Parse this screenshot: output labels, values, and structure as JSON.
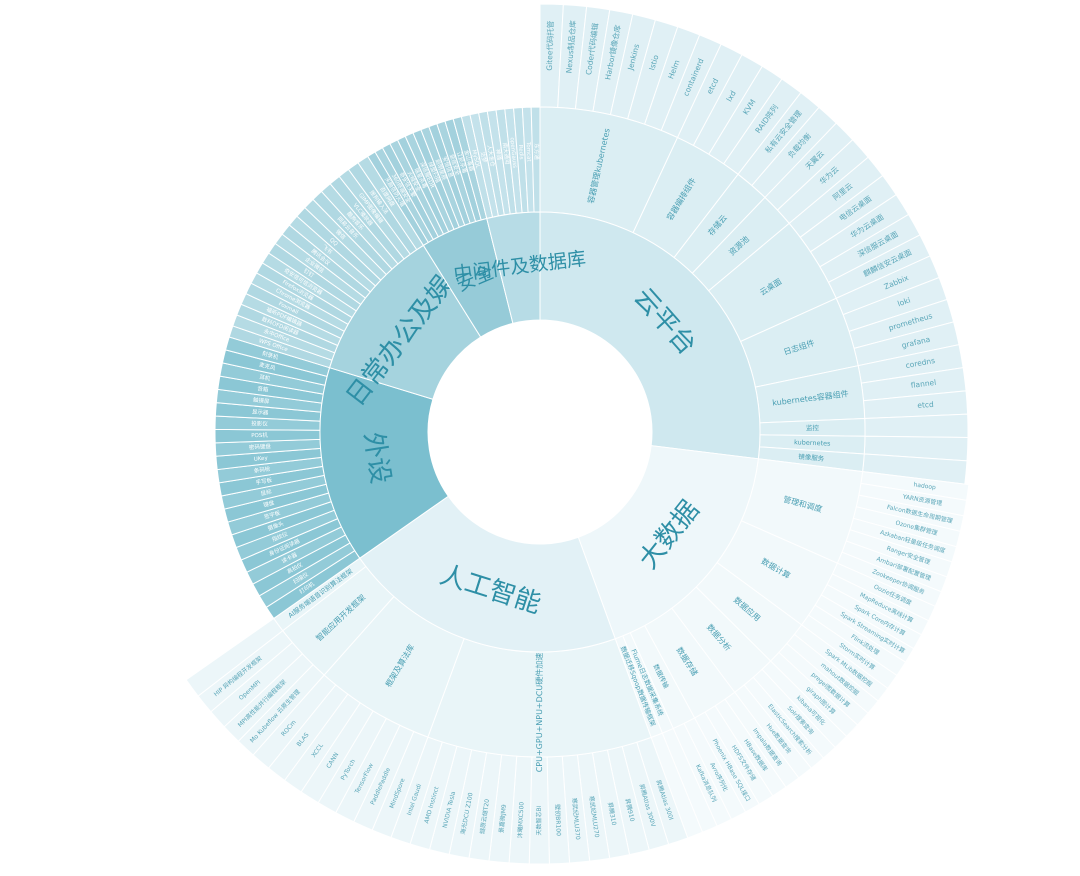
{
  "chart_data": {
    "type": "sunburst",
    "title": "",
    "colors": {
      "云平台": "#cfe8ef",
      "大数据": "#eef7fa",
      "人工智能": "#e2f1f6",
      "外设": "#7bbfcf",
      "日常办公及娱乐": "#a5d3de",
      "安全": "#96cbd8",
      "中间件及数据库": "#b7dce6"
    },
    "tree": [
      {
        "name": "云平台",
        "children": [
          {
            "name": "容器管理kubernetes",
            "children": [
              {
                "name": "Gitee代码托管"
              },
              {
                "name": "Nexus制品仓库"
              },
              {
                "name": "Coder代码编辑"
              },
              {
                "name": "Harbor镜像仓库"
              },
              {
                "name": "Jenkins"
              },
              {
                "name": "Istio"
              },
              {
                "name": "Helm"
              },
              {
                "name": "containerd"
              }
            ]
          },
          {
            "name": "容器编排组件",
            "children": [
              {
                "name": "etcd"
              },
              {
                "name": "lxd"
              },
              {
                "name": "KVM"
              },
              {
                "name": "RAID阵列"
              }
            ]
          },
          {
            "name": "存储云",
            "children": [
              {
                "name": "私有云安全管理"
              },
              {
                "name": "负载均衡"
              }
            ]
          },
          {
            "name": "资源池",
            "children": [
              {
                "name": "天翼云"
              },
              {
                "name": "华为云"
              }
            ]
          },
          {
            "name": "云桌面",
            "children": [
              {
                "name": "阿里云"
              },
              {
                "name": "电信云桌面"
              },
              {
                "name": "华为云桌面"
              },
              {
                "name": "深信服云桌面"
              },
              {
                "name": "麒麟信安云桌面"
              }
            ]
          },
          {
            "name": "日志组件",
            "children": [
              {
                "name": "Zabbix"
              },
              {
                "name": "loki"
              },
              {
                "name": "prometheus"
              },
              {
                "name": "grafana"
              }
            ]
          },
          {
            "name": "kubernetes容器组件",
            "children": [
              {
                "name": "coredns"
              },
              {
                "name": "flannel"
              },
              {
                "name": "etcd"
              }
            ]
          },
          {
            "name": "监控",
            "children": []
          },
          {
            "name": "kubernetes",
            "children": []
          },
          {
            "name": "镜像服务",
            "children": []
          }
        ]
      },
      {
        "name": "大数据",
        "children": [
          {
            "name": "管理和调度",
            "children": [
              {
                "name": "hadoop"
              },
              {
                "name": "YARN资源管理"
              },
              {
                "name": "Falcon数据生命周期管理"
              },
              {
                "name": "Ozone集群管理"
              },
              {
                "name": "Azkaban轻量级任务调度"
              },
              {
                "name": "Ranger安全管理"
              },
              {
                "name": "Ambari部署配置管理"
              },
              {
                "name": "Zookeeper协调服务"
              }
            ]
          },
          {
            "name": "数据计算",
            "children": [
              {
                "name": "Oozie任务调度"
              },
              {
                "name": "MapReduce离线计算"
              },
              {
                "name": "Spark Core内存计算"
              },
              {
                "name": "Spark Streaming实时计算"
              },
              {
                "name": "Flink流处理"
              },
              {
                "name": "Storm实时计算"
              }
            ]
          },
          {
            "name": "数据应用",
            "children": [
              {
                "name": "Spark MLib数据挖掘"
              },
              {
                "name": "mahout数据挖掘"
              },
              {
                "name": "pregel图数据计算"
              },
              {
                "name": "giraph图计算"
              }
            ]
          },
          {
            "name": "数据分析",
            "children": [
              {
                "name": "kibana可视化"
              },
              {
                "name": "Solr搜索查询"
              },
              {
                "name": "ElasticSearch搜索分析"
              },
              {
                "name": "Hue数据查询"
              }
            ]
          },
          {
            "name": "数据存储",
            "children": [
              {
                "name": "Impala数据查询"
              },
              {
                "name": "HBase数据库"
              },
              {
                "name": "HDFS文件存储"
              },
              {
                "name": "Phoenix HBase SQL接口"
              }
            ]
          },
          {
            "name": "数据传输",
            "children": [
              {
                "name": "Avro序列化"
              },
              {
                "name": "Kafka消息队列"
              }
            ]
          },
          {
            "name": "Flume日志数据采集系统",
            "children": []
          },
          {
            "name": "数据迁移Sqoop数据传输框架",
            "children": []
          }
        ]
      },
      {
        "name": "人工智能",
        "children": [
          {
            "name": "CPU+GPU+NPU+DCU硬件加速平台",
            "children": [
              {
                "name": "昇腾Atlas 300I"
              },
              {
                "name": "昇腾Atlas 300V"
              },
              {
                "name": "昇腾910"
              },
              {
                "name": "昇腾310"
              },
              {
                "name": "寒武纪MLU270"
              },
              {
                "name": "寒武纪MLU370"
              },
              {
                "name": "壁仞BR100"
              },
              {
                "name": "天数智芯BI"
              },
              {
                "name": "沐曦MXC500"
              },
              {
                "name": "景嘉微JM9"
              },
              {
                "name": "燧原云燧T20"
              },
              {
                "name": "海光DCU Z100"
              },
              {
                "name": "NVIDIA Tesla"
              },
              {
                "name": "AMD Instinct"
              },
              {
                "name": "Intel Gaudi"
              }
            ]
          },
          {
            "name": "框架及算法库",
            "children": [
              {
                "name": "MindSpore"
              },
              {
                "name": "PaddlePaddle"
              },
              {
                "name": "TensorFlow"
              },
              {
                "name": "PyTorch"
              },
              {
                "name": "CANN"
              },
              {
                "name": "XCCL"
              },
              {
                "name": "BLAS"
              },
              {
                "name": "ROCm"
              }
            ]
          },
          {
            "name": "智能应用开发框架",
            "children": [
              {
                "name": "Mo Kubeflow 云原生管理"
              },
              {
                "name": "MPI高性能并行编程框架"
              },
              {
                "name": "OpenMPI"
              },
              {
                "name": "HIP 异构编程开发框架"
              }
            ]
          },
          {
            "name": "AI服务端语音识别算法框架",
            "children": []
          }
        ]
      },
      {
        "name": "外设",
        "children": [
          {
            "name": "打印机"
          },
          {
            "name": "扫描仪"
          },
          {
            "name": "高拍仪"
          },
          {
            "name": "读卡器"
          },
          {
            "name": "身份证阅读器"
          },
          {
            "name": "指纹仪"
          },
          {
            "name": "摄像头"
          },
          {
            "name": "签字板"
          },
          {
            "name": "键盘"
          },
          {
            "name": "鼠标"
          },
          {
            "name": "手写板"
          },
          {
            "name": "条码枪"
          },
          {
            "name": "UKey"
          },
          {
            "name": "密码键盘"
          },
          {
            "name": "POS机"
          },
          {
            "name": "投影仪"
          },
          {
            "name": "显示器"
          },
          {
            "name": "触摸屏"
          },
          {
            "name": "音箱"
          },
          {
            "name": "耳机"
          },
          {
            "name": "麦克风"
          },
          {
            "name": "刻录机"
          }
        ]
      },
      {
        "name": "日常办公及娱乐",
        "children": [
          {
            "name": "WPS Office"
          },
          {
            "name": "永中Office"
          },
          {
            "name": "数科OFD阅读器"
          },
          {
            "name": "福昕PDF编辑器"
          },
          {
            "name": "Foxmail"
          },
          {
            "name": "Chrome浏览器"
          },
          {
            "name": "Firefox浏览器"
          },
          {
            "name": "奇安信可信浏览器"
          },
          {
            "name": "钉钉"
          },
          {
            "name": "企业微信"
          },
          {
            "name": "腾讯会议"
          },
          {
            "name": "飞书"
          },
          {
            "name": "QQ"
          },
          {
            "name": "微信"
          },
          {
            "name": "网易云音乐"
          },
          {
            "name": "酷狗音乐"
          },
          {
            "name": "VLC播放器"
          },
          {
            "name": "GIMP图像编辑"
          },
          {
            "name": "搜狗输入法"
          },
          {
            "name": "百度网盘"
          }
        ]
      },
      {
        "name": "安全",
        "children": [
          {
            "name": "天融信防火墙"
          },
          {
            "name": "360终端安全"
          },
          {
            "name": "奇安信天擎"
          },
          {
            "name": "火绒安全"
          },
          {
            "name": "瑞星杀毒"
          },
          {
            "name": "深信服EDR"
          },
          {
            "name": "绿盟扫描"
          },
          {
            "name": "启明星辰"
          },
          {
            "name": "安恒信息"
          },
          {
            "name": "亚信安全"
          },
          {
            "name": "江民杀毒"
          },
          {
            "name": "金山毒霸"
          }
        ]
      },
      {
        "name": "中间件及数据库",
        "children": [
          {
            "name": "MySQL"
          },
          {
            "name": "达梦"
          },
          {
            "name": "人大金仓"
          },
          {
            "name": "神通"
          },
          {
            "name": "南大通用"
          },
          {
            "name": "openGauss"
          },
          {
            "name": "Redis"
          },
          {
            "name": "Tomcat"
          },
          {
            "name": "东方通"
          }
        ]
      }
    ]
  }
}
